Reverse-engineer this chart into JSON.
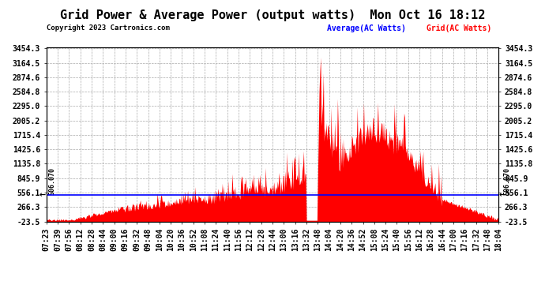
{
  "title": "Grid Power & Average Power (output watts)  Mon Oct 16 18:12",
  "copyright": "Copyright 2023 Cartronics.com",
  "legend_average": "Average(AC Watts)",
  "legend_grid": "Grid(AC Watts)",
  "average_value": 506.07,
  "ylim_min": -23.5,
  "ylim_max": 3454.3,
  "yticks": [
    3454.3,
    3164.5,
    2874.6,
    2584.8,
    2295.0,
    2005.2,
    1715.4,
    1425.6,
    1135.8,
    845.9,
    556.1,
    266.3,
    -23.5
  ],
  "time_labels": [
    "07:23",
    "07:39",
    "07:56",
    "08:12",
    "08:28",
    "08:44",
    "09:00",
    "09:16",
    "09:32",
    "09:48",
    "10:04",
    "10:20",
    "10:36",
    "10:52",
    "11:08",
    "11:24",
    "11:40",
    "11:56",
    "12:12",
    "12:28",
    "12:44",
    "13:00",
    "13:16",
    "13:32",
    "13:48",
    "14:04",
    "14:20",
    "14:36",
    "14:52",
    "15:08",
    "15:24",
    "15:40",
    "15:56",
    "16:12",
    "16:28",
    "16:44",
    "17:00",
    "17:16",
    "17:32",
    "17:48",
    "18:04"
  ],
  "background_color": "#ffffff",
  "grid_color": "#aaaaaa",
  "fill_color": "#ff0000",
  "line_color": "#0000ff",
  "average_annotation": "506.070",
  "average_label_color": "#0000ff",
  "grid_label_color": "#ff0000",
  "title_fontsize": 11,
  "tick_fontsize": 7,
  "label_fontsize": 7
}
